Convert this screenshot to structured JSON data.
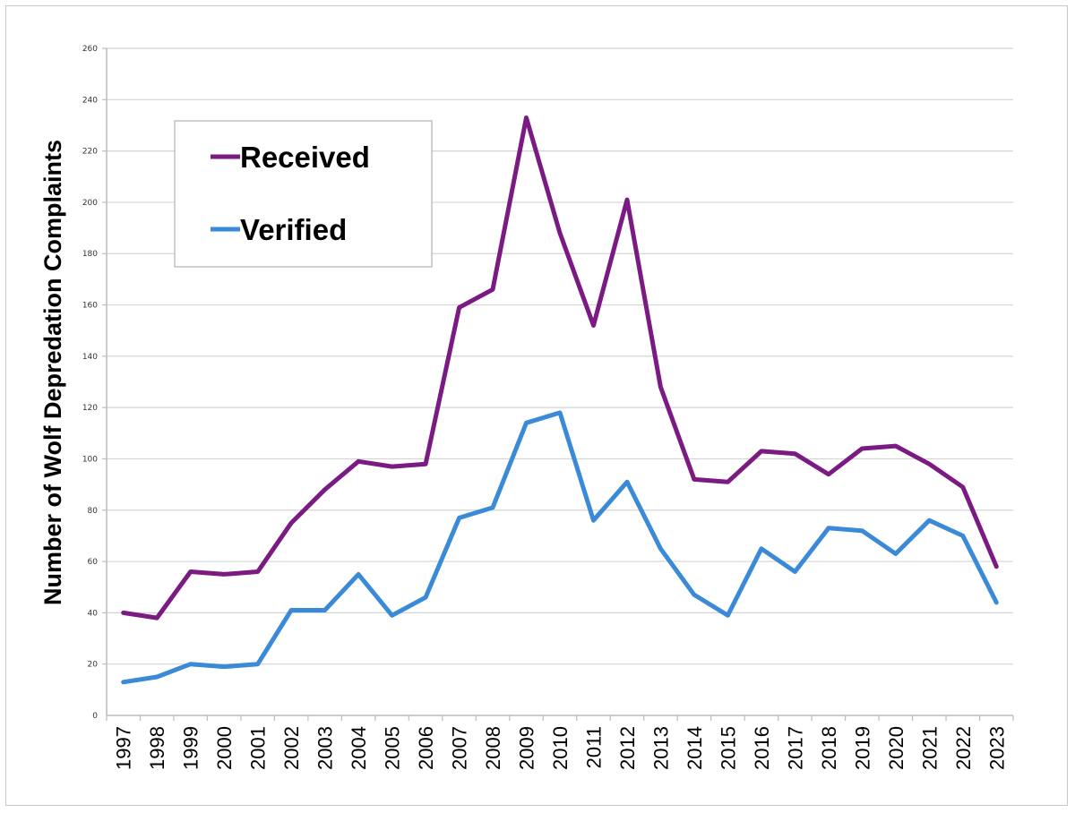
{
  "chart_data": {
    "type": "line",
    "title": "",
    "xlabel": "",
    "ylabel": "Number of Wolf Depredation Complaints",
    "ylim": [
      0,
      260
    ],
    "yticks": [
      0,
      20,
      40,
      60,
      80,
      100,
      120,
      140,
      160,
      180,
      200,
      220,
      240,
      260
    ],
    "grid": true,
    "legend_position": "top-left",
    "categories": [
      "1997",
      "1998",
      "1999",
      "2000",
      "2001",
      "2002",
      "2003",
      "2004",
      "2005",
      "2006",
      "2007",
      "2008",
      "2009",
      "2010",
      "2011",
      "2012",
      "2013",
      "2014",
      "2015",
      "2016",
      "2017",
      "2018",
      "2019",
      "2020",
      "2021",
      "2022",
      "2023"
    ],
    "series": [
      {
        "name": "Received",
        "color": "#7a1a82",
        "values": [
          40,
          38,
          56,
          55,
          56,
          75,
          88,
          99,
          97,
          98,
          159,
          166,
          233,
          188,
          152,
          201,
          128,
          92,
          91,
          103,
          102,
          94,
          104,
          105,
          98,
          89,
          58
        ]
      },
      {
        "name": "Verified",
        "color": "#3a8ad8",
        "values": [
          13,
          15,
          20,
          19,
          20,
          41,
          41,
          55,
          39,
          46,
          77,
          81,
          114,
          118,
          76,
          91,
          65,
          47,
          39,
          65,
          56,
          73,
          72,
          63,
          76,
          70,
          44
        ]
      }
    ]
  }
}
